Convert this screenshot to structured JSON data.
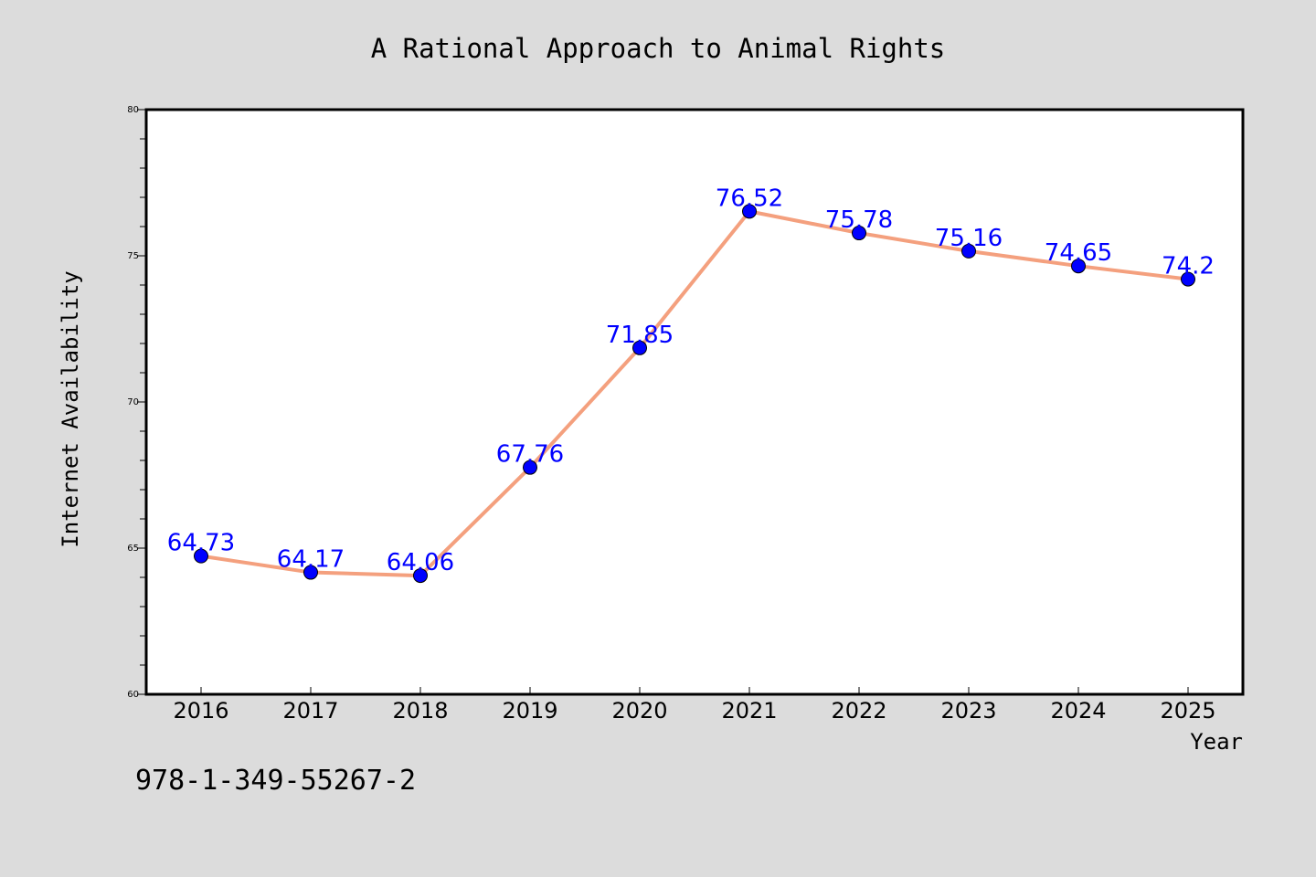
{
  "chart_data": {
    "type": "line",
    "title": "A Rational Approach to Animal Rights",
    "xlabel": "Year",
    "ylabel": "Internet Availability",
    "categories": [
      "2016",
      "2017",
      "2018",
      "2019",
      "2020",
      "2021",
      "2022",
      "2023",
      "2024",
      "2025"
    ],
    "series": [
      {
        "values": [
          64.73,
          64.17,
          64.06,
          67.76,
          71.85,
          76.52,
          75.78,
          75.16,
          74.65,
          74.2
        ],
        "labels": [
          "64.73",
          "64.17",
          "64.06",
          "67.76",
          "71.85",
          "76.52",
          "75.78",
          "75.16",
          "74.65",
          "74.2"
        ],
        "line_color": "#f4a07e",
        "marker_color": "#0000ff"
      }
    ],
    "ylim": [
      60,
      80
    ],
    "yticks": [
      "60",
      "65",
      "70",
      "75",
      "80"
    ],
    "grid": false,
    "legend": "none",
    "colors": {
      "background": "#dcdcdc",
      "plot_background": "#ffffff",
      "data_label": "#0000ff"
    }
  },
  "footer": {
    "code": "978-1-349-55267-2"
  }
}
